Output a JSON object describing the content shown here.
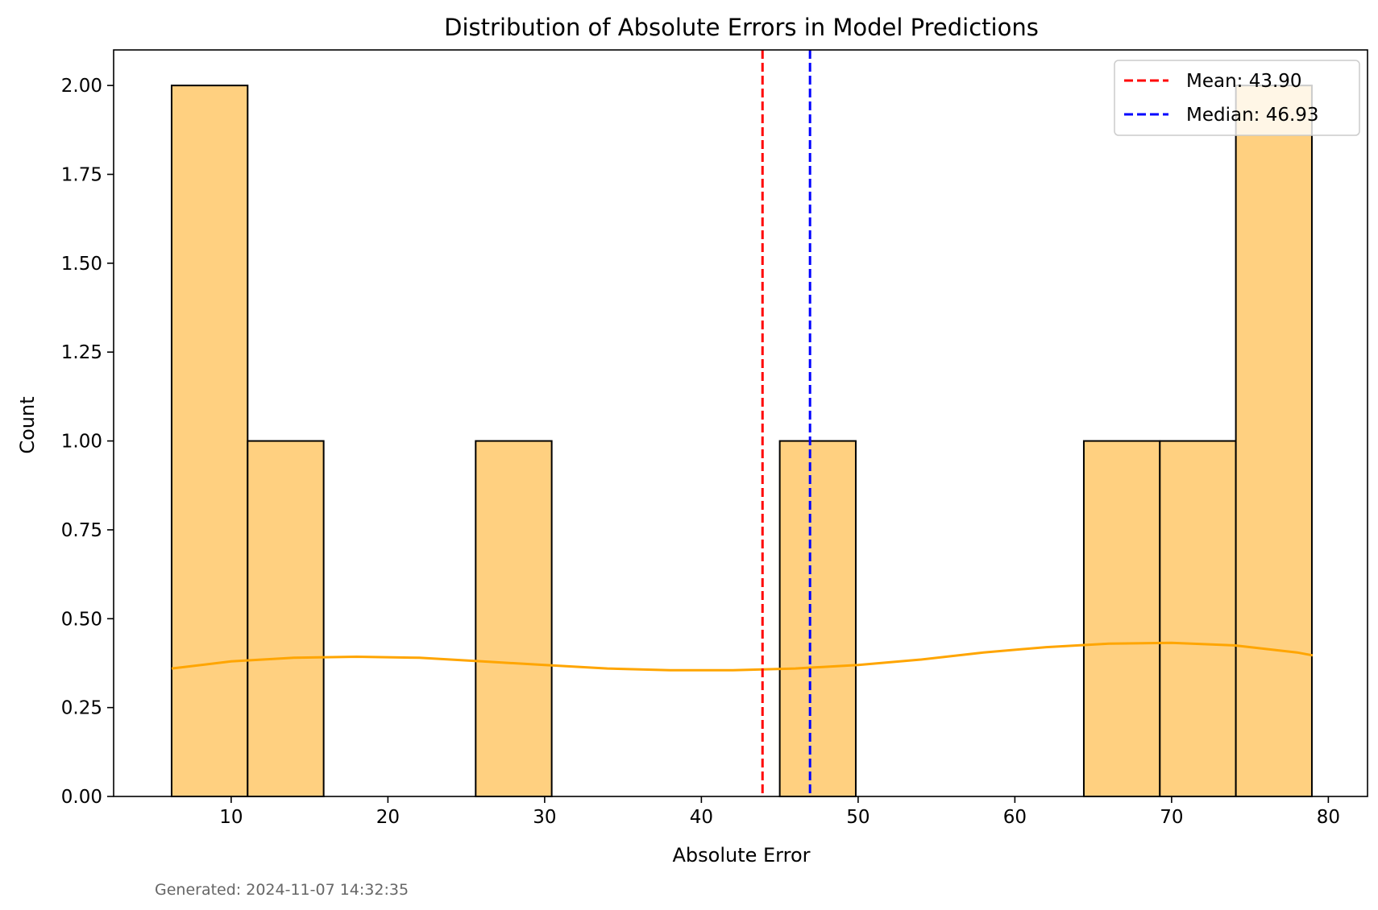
{
  "footer": {
    "generated": "Generated: 2024-11-07 14:32:35"
  },
  "colors": {
    "bar_fill": "#ffd080",
    "bar_edge": "#000000",
    "kde": "#ffa500",
    "mean_line": "#ff0000",
    "median_line": "#0000ff"
  },
  "chart_data": {
    "type": "bar",
    "title": "Distribution of Absolute Errors in Model Predictions",
    "xlabel": "Absolute Error",
    "ylabel": "Count",
    "xlim": [
      2.5,
      82.5
    ],
    "ylim": [
      0,
      2.1
    ],
    "xticks": [
      10,
      20,
      30,
      40,
      50,
      60,
      70,
      80
    ],
    "yticks": [
      0,
      0.25,
      0.5,
      0.75,
      1.0,
      1.25,
      1.5,
      1.75,
      2.0
    ],
    "ytick_labels": [
      "0.00",
      "0.25",
      "0.50",
      "0.75",
      "1.00",
      "1.25",
      "1.50",
      "1.75",
      "2.00"
    ],
    "bins": [
      {
        "x0": 6.2,
        "x1": 11.05,
        "count": 2
      },
      {
        "x0": 11.05,
        "x1": 15.9,
        "count": 1
      },
      {
        "x0": 15.9,
        "x1": 20.75,
        "count": 0
      },
      {
        "x0": 20.75,
        "x1": 25.6,
        "count": 0
      },
      {
        "x0": 25.6,
        "x1": 30.45,
        "count": 1
      },
      {
        "x0": 30.45,
        "x1": 35.3,
        "count": 0
      },
      {
        "x0": 35.3,
        "x1": 40.15,
        "count": 0
      },
      {
        "x0": 40.15,
        "x1": 45.0,
        "count": 0
      },
      {
        "x0": 45.0,
        "x1": 49.85,
        "count": 1
      },
      {
        "x0": 49.85,
        "x1": 54.7,
        "count": 0
      },
      {
        "x0": 54.7,
        "x1": 59.55,
        "count": 0
      },
      {
        "x0": 59.55,
        "x1": 64.4,
        "count": 0
      },
      {
        "x0": 64.4,
        "x1": 69.25,
        "count": 1
      },
      {
        "x0": 69.25,
        "x1": 74.1,
        "count": 1
      },
      {
        "x0": 74.1,
        "x1": 78.95,
        "count": 2
      }
    ],
    "kde": {
      "x": [
        6.2,
        10,
        14,
        18,
        22,
        26,
        30,
        34,
        38,
        42,
        46,
        50,
        54,
        58,
        62,
        66,
        70,
        74,
        78,
        79.0
      ],
      "y": [
        0.36,
        0.38,
        0.39,
        0.393,
        0.39,
        0.38,
        0.37,
        0.36,
        0.355,
        0.355,
        0.36,
        0.37,
        0.385,
        0.405,
        0.42,
        0.43,
        0.432,
        0.425,
        0.405,
        0.397
      ]
    },
    "reference_lines": [
      {
        "name": "Mean: 43.90",
        "x": 43.9,
        "color": "#ff0000"
      },
      {
        "name": "Median: 46.93",
        "x": 46.93,
        "color": "#0000ff"
      }
    ],
    "legend": {
      "placement": "top-right",
      "entries": [
        "Mean: 43.90",
        "Median: 46.93"
      ]
    },
    "grid": false
  }
}
